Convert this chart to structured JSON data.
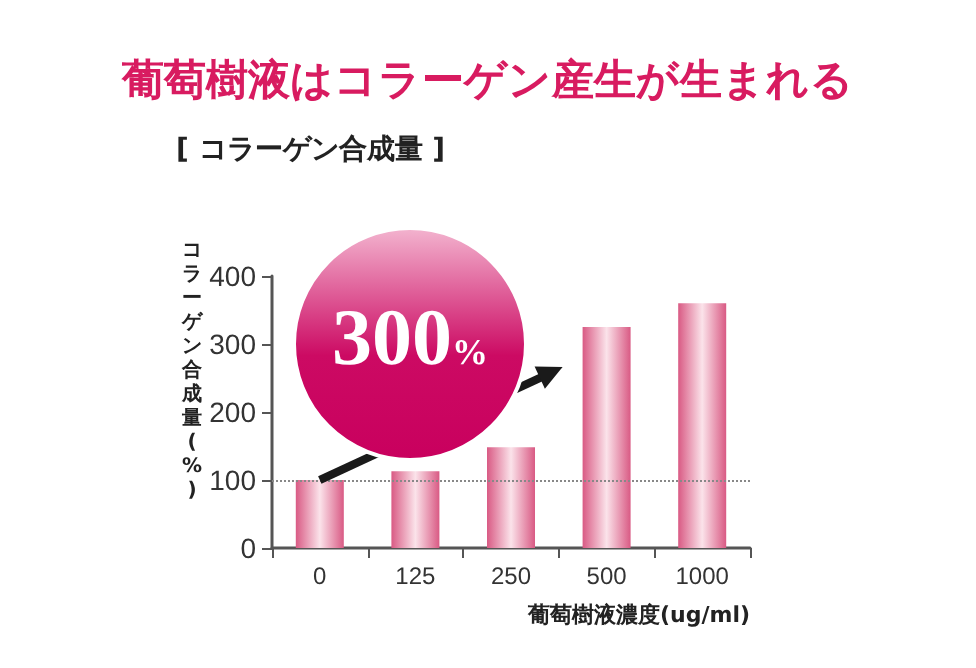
{
  "chart_data": {
    "type": "bar",
    "title": "葡萄樹液はコラーゲン産生が生まれる",
    "subtitle": "[ コラーゲン合成量 ]",
    "xlabel": "葡萄樹液濃度(ug/ml)",
    "ylabel": "コラーゲン合成量(%)",
    "categories": [
      "0",
      "125",
      "250",
      "500",
      "1000"
    ],
    "values": [
      100,
      113,
      148,
      325,
      360
    ],
    "color": "#d95a84",
    "ylim": [
      0,
      400
    ],
    "yticks": [
      0,
      100,
      200,
      300,
      400
    ],
    "grid": false,
    "ref_lines": [
      {
        "axis": "y",
        "value": 100,
        "color": "#888888",
        "line_style": "dotted"
      }
    ],
    "annotations": [
      "300%"
    ]
  }
}
